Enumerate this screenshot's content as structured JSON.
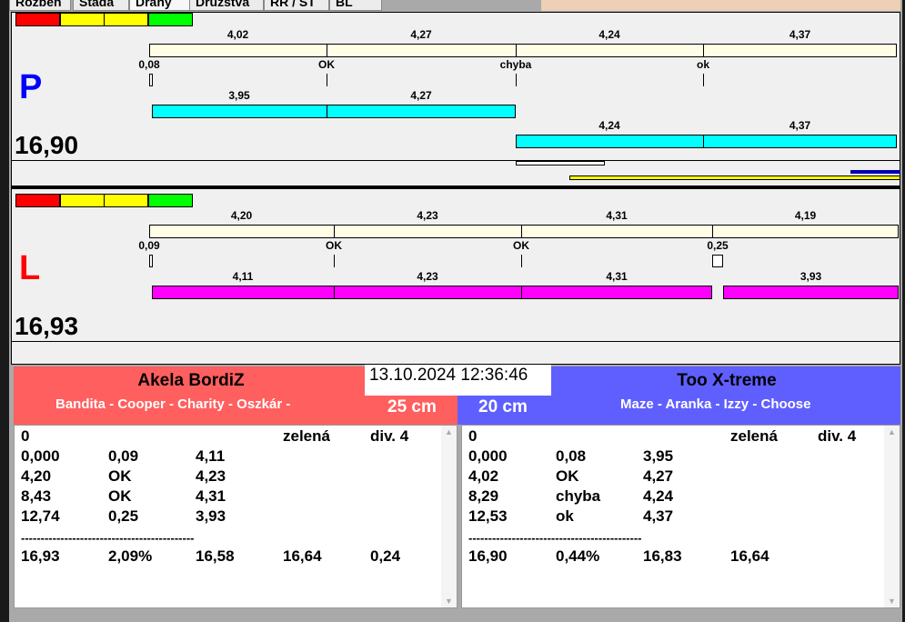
{
  "tabs": [
    "Rozběh",
    "Stáda",
    "Dráhy",
    "Družstva",
    "RR / ST",
    "BL"
  ],
  "colors": {
    "traffic": [
      "#ff0000",
      "#ffff00",
      "#ffff00",
      "#00ff00"
    ],
    "track": "#fffde6",
    "left_bar": "#00ffff",
    "right_bar": "#ff00ff",
    "left_team": "#ff5f5f",
    "right_team": "#5f5fff"
  },
  "lanes": {
    "P": {
      "side_label": "P",
      "side_color": "#0000ff",
      "total": "16,90",
      "top_labels": [
        "4,02",
        "4,27",
        "4,24",
        "4,37"
      ],
      "tick_labels": [
        "0,08",
        "OK",
        "chyba",
        "ok"
      ],
      "bar1_labels": [
        "3,95",
        "4,27"
      ],
      "bar2_labels": [
        "4,24",
        "4,37"
      ]
    },
    "L": {
      "side_label": "L",
      "side_color": "#ff0000",
      "total": "16,93",
      "top_labels": [
        "4,20",
        "4,23",
        "4,31",
        "4,19"
      ],
      "tick_labels": [
        "0,09",
        "OK",
        "OK",
        "0,25"
      ],
      "bar1_labels": [
        "4,11",
        "4,23",
        "4,31"
      ],
      "bar2_labels": [
        "3,93"
      ]
    }
  },
  "datetime": "13.10.2024 12:36:46",
  "left_team": {
    "name": "Akela BordiZ",
    "dogs": "Bandita - Cooper - Charity - Oszkár -",
    "height": "25 cm",
    "rows": [
      [
        "0",
        "",
        "",
        "zelená",
        "div. 4"
      ],
      [
        "0,000",
        "0,09",
        "4,11",
        "",
        ""
      ],
      [
        "4,20",
        "OK",
        "4,23",
        "",
        ""
      ],
      [
        "8,43",
        "OK",
        "4,31",
        "",
        ""
      ],
      [
        "12,74",
        "0,25",
        "3,93",
        "",
        ""
      ],
      [
        "--------------------------------------------",
        "",
        "",
        "",
        ""
      ],
      [
        "16,93",
        "2,09%",
        "16,58",
        "16,64",
        "0,24"
      ]
    ]
  },
  "right_team": {
    "name": "Too X-treme",
    "dogs": "Maze - Aranka - Izzy - Choose",
    "height": "20 cm",
    "rows": [
      [
        "0",
        "",
        "",
        "zelená",
        "div. 4"
      ],
      [
        "0,000",
        "0,08",
        "3,95",
        "",
        ""
      ],
      [
        "4,02",
        "OK",
        "4,27",
        "",
        ""
      ],
      [
        "8,29",
        "chyba",
        "4,24",
        "",
        ""
      ],
      [
        "12,53",
        "ok",
        "4,37",
        "",
        ""
      ],
      [
        "--------------------------------------------",
        "",
        "",
        "",
        ""
      ],
      [
        "16,90",
        "0,44%",
        "16,83",
        "16,64",
        ""
      ]
    ]
  }
}
